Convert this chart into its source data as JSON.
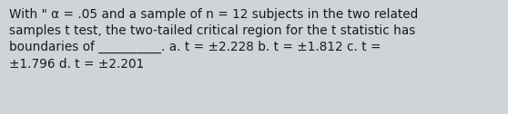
{
  "text": "With \" α = .05 and a sample of n = 12 subjects in the two related\nsamples t test, the two-tailed critical region for the t statistic has\nboundaries of __________. a. t = ±2.228 b. t = ±1.812 c. t =\n±1.796 d. t = ±2.201",
  "background_color": "#d0d3d8",
  "text_color": "#1a1a1a",
  "font_size": 9.8,
  "fig_width": 5.58,
  "fig_height": 1.26
}
